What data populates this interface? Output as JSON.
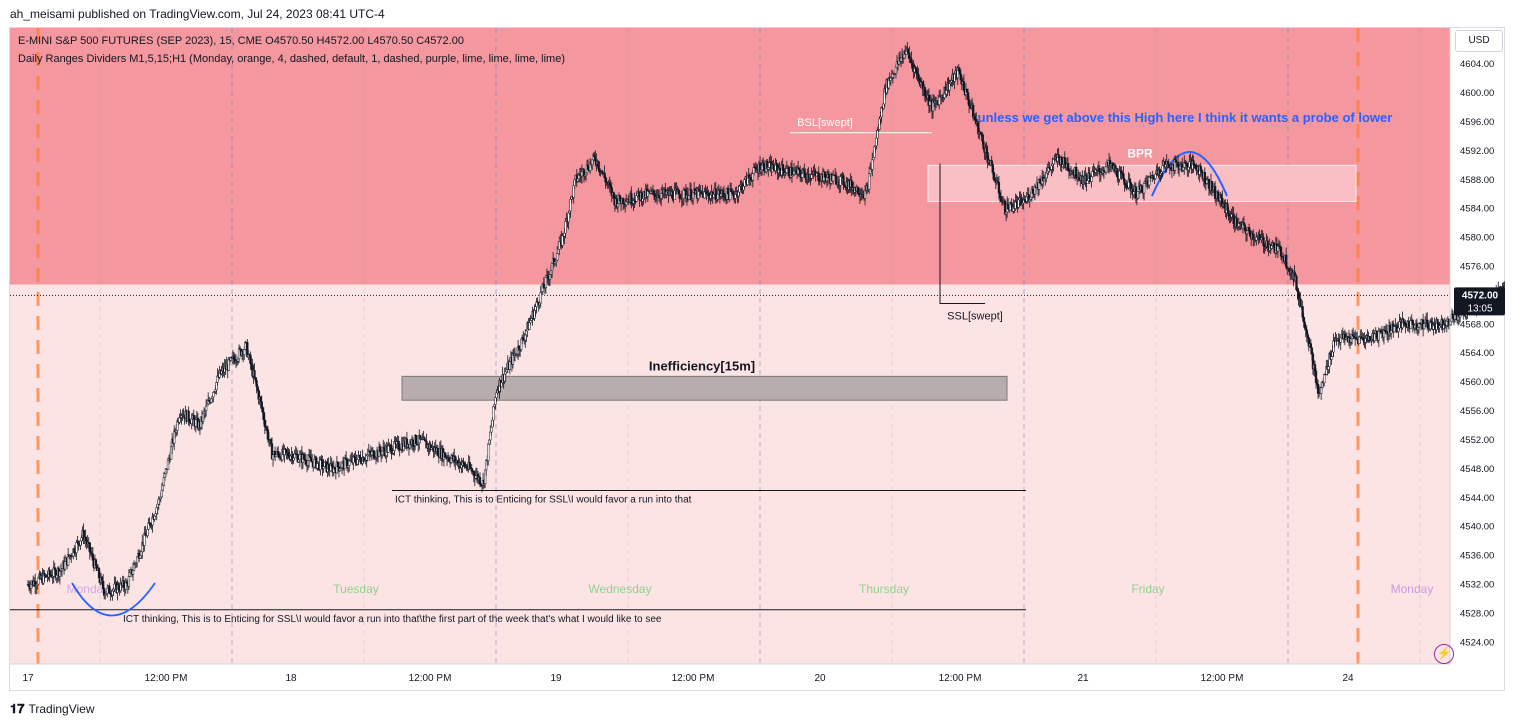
{
  "attribution": "ah_meisami published on TradingView.com, Jul 24, 2023 08:41 UTC-4",
  "legend": {
    "symbol_line": "E-MINI S&P 500 FUTURES (SEP 2023), 15, CME  O4570.50  H4572.00  L4570.50  C4572.00",
    "indicator_line": "Daily Ranges Dividers M1,5,15;H1 (Monday, orange, 4, dashed, default, 1, dashed, purple, lime, lime, lime, lime)"
  },
  "currency": "USD",
  "current_price_label": "4572.00",
  "countdown_label": "13:05",
  "footer_brand": "TradingView",
  "zap_icon": "lightning-icon",
  "colors": {
    "upper_zone": "#f4979e",
    "lower_zone": "#fde4e4",
    "candle": "#131722",
    "inefficiency_box": "#b7adad",
    "bpr_box": "#fbc6cb",
    "annotation_blue": "#2962ff",
    "monday_divider": "#ff7e3a",
    "daily_divider": "#9598a1"
  },
  "annotations": {
    "bsl": "BSL[swept]",
    "ssl": "SSL[swept]",
    "bpr": "BPR",
    "inefficiency": "Inefficiency[15m]",
    "comment": "unless we get above this High here I think it wants a probe of lower",
    "ict_note_1": "ICT thinking, This is to Enticing for SSL\\I would favor a run into that",
    "ict_note_2": "ICT thinking, This is to Enticing for SSL\\I would favor a run into that\\the first part of the week that's what I would like to see"
  },
  "day_labels": [
    "Monday",
    "Tuesday",
    "Wednesday",
    "Thursday",
    "Friday",
    "Monday"
  ],
  "chart_data": {
    "type": "candlestick",
    "title": "E-MINI S&P 500 FUTURES (SEP 2023), 15, CME",
    "timeframe": "15",
    "x_ticks": [
      "17",
      "12:00 PM",
      "18",
      "12:00 PM",
      "19",
      "12:00 PM",
      "20",
      "12:00 PM",
      "21",
      "12:00 PM",
      "24"
    ],
    "y_ticks": [
      4604,
      4600,
      4596,
      4592,
      4588,
      4584,
      4580,
      4576,
      4572,
      4568,
      4564,
      4560,
      4556,
      4552,
      4548,
      4544,
      4540,
      4536,
      4532,
      4528,
      4524
    ],
    "ylim": [
      4521,
      4609
    ],
    "last_close": 4572.0,
    "ohlc_last": {
      "open": 4570.5,
      "high": 4572.0,
      "low": 4570.5,
      "close": 4572.0
    },
    "zones": {
      "premium_zone_bottom": 4573.5,
      "inefficiency": [
        4557.5,
        4560.8
      ],
      "bpr": [
        4585,
        4590
      ],
      "bsl_level": 4594.5,
      "ssl_level": 4569.5,
      "ict_line_1": 4545,
      "ict_line_2": 4528.5
    },
    "path_points": [
      [
        0,
        4532
      ],
      [
        0.25,
        4534
      ],
      [
        0.42,
        4539
      ],
      [
        0.58,
        4531
      ],
      [
        0.75,
        4532
      ],
      [
        1.0,
        4544
      ],
      [
        1.15,
        4556
      ],
      [
        1.3,
        4554
      ],
      [
        1.45,
        4561
      ],
      [
        1.65,
        4565
      ],
      [
        1.75,
        4558
      ],
      [
        1.85,
        4550
      ],
      [
        2.0,
        4550
      ],
      [
        2.3,
        4548
      ],
      [
        2.6,
        4550
      ],
      [
        2.95,
        4552
      ],
      [
        3.15,
        4550
      ],
      [
        3.35,
        4548
      ],
      [
        3.45,
        4546
      ],
      [
        3.55,
        4559
      ],
      [
        3.75,
        4566
      ],
      [
        3.95,
        4575
      ],
      [
        4.05,
        4580
      ],
      [
        4.15,
        4588
      ],
      [
        4.3,
        4591
      ],
      [
        4.45,
        4585
      ],
      [
        4.7,
        4586
      ],
      [
        5.0,
        4586
      ],
      [
        5.35,
        4586
      ],
      [
        5.55,
        4590
      ],
      [
        5.8,
        4589
      ],
      [
        6.15,
        4588
      ],
      [
        6.35,
        4586
      ],
      [
        6.5,
        4601
      ],
      [
        6.65,
        4606
      ],
      [
        6.85,
        4598
      ],
      [
        7.05,
        4603
      ],
      [
        7.2,
        4595
      ],
      [
        7.4,
        4584
      ],
      [
        7.55,
        4585
      ],
      [
        7.8,
        4591
      ],
      [
        8.0,
        4588
      ],
      [
        8.2,
        4590
      ],
      [
        8.4,
        4586
      ],
      [
        8.6,
        4590
      ],
      [
        8.85,
        4590
      ],
      [
        9.0,
        4586
      ],
      [
        9.15,
        4582
      ],
      [
        9.3,
        4580
      ],
      [
        9.5,
        4578
      ],
      [
        9.6,
        4574
      ],
      [
        9.7,
        4566
      ],
      [
        9.78,
        4558
      ],
      [
        9.9,
        4566
      ],
      [
        10.15,
        4566
      ],
      [
        10.4,
        4568
      ],
      [
        10.7,
        4568
      ],
      [
        11.0,
        4571
      ],
      [
        11.2,
        4573
      ],
      [
        11.4,
        4575
      ],
      [
        11.6,
        4578
      ],
      [
        11.7,
        4589
      ],
      [
        11.8,
        4578
      ],
      [
        11.9,
        4565
      ],
      [
        12.0,
        4578
      ],
      [
        12.15,
        4575
      ],
      [
        12.25,
        4583
      ],
      [
        12.35,
        4570
      ],
      [
        12.5,
        4566
      ],
      [
        12.7,
        4562
      ],
      [
        12.9,
        4562
      ],
      [
        13.1,
        4563
      ],
      [
        13.3,
        4564
      ],
      [
        13.5,
        4563
      ],
      [
        13.65,
        4560
      ],
      [
        13.75,
        4566
      ],
      [
        13.9,
        4572
      ],
      [
        14.1,
        4575
      ],
      [
        14.3,
        4573
      ],
      [
        14.5,
        4570
      ],
      [
        14.6,
        4572
      ]
    ]
  }
}
